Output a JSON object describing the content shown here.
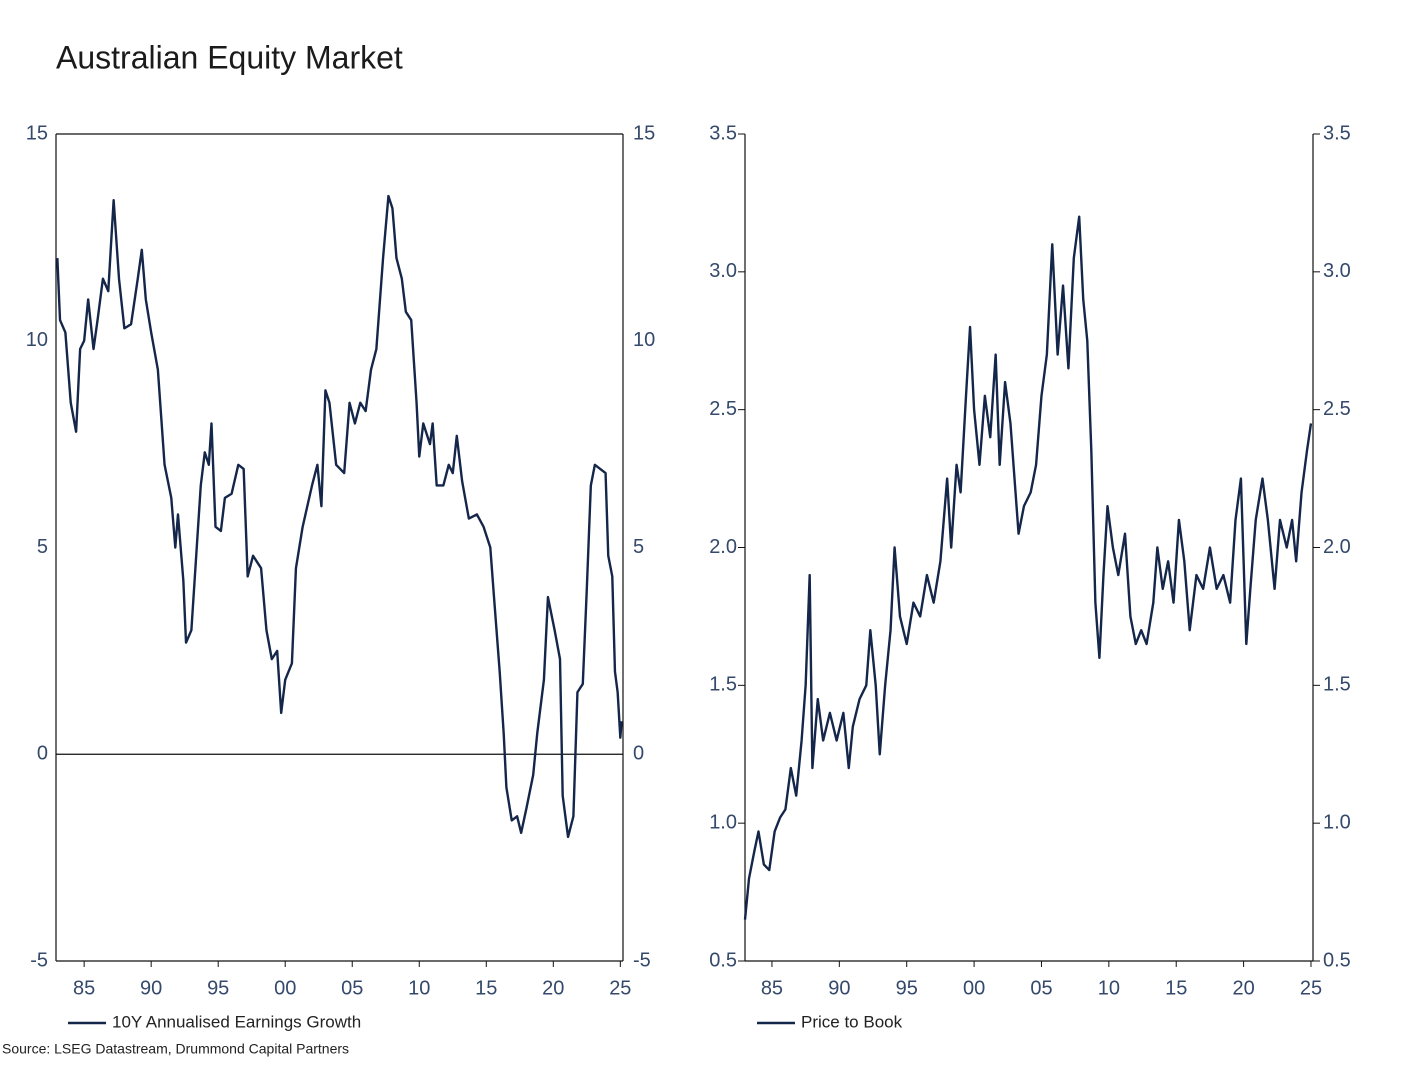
{
  "title": "Australian Equity Market",
  "source": "Source: LSEG Datastream, Drummond Capital Partners",
  "chart_data": [
    {
      "type": "line",
      "xlim": [
        1982.9,
        2025.2
      ],
      "xticks": [
        {
          "value": 1985,
          "label": "85"
        },
        {
          "value": 1990,
          "label": "90"
        },
        {
          "value": 1995,
          "label": "95"
        },
        {
          "value": 2000,
          "label": "00"
        },
        {
          "value": 2005,
          "label": "05"
        },
        {
          "value": 2010,
          "label": "10"
        },
        {
          "value": 2015,
          "label": "15"
        },
        {
          "value": 2020,
          "label": "20"
        },
        {
          "value": 2025,
          "label": "25"
        }
      ],
      "ylim": [
        -5,
        15
      ],
      "yticks": [
        -5,
        0,
        5,
        10,
        15
      ],
      "y2lim": [
        -5,
        15
      ],
      "y2ticks": [
        -5,
        0,
        5,
        10,
        15
      ],
      "x": [
        1983.0,
        1983.2,
        1983.6,
        1984.0,
        1984.4,
        1984.7,
        1985.0,
        1985.3,
        1985.7,
        1986.0,
        1986.4,
        1986.8,
        1987.2,
        1987.6,
        1988.0,
        1988.5,
        1989.0,
        1989.3,
        1989.6,
        1990.0,
        1990.5,
        1991.0,
        1991.5,
        1991.8,
        1992.0,
        1992.4,
        1992.6,
        1993.0,
        1993.3,
        1993.7,
        1994.0,
        1994.3,
        1994.5,
        1994.8,
        1995.2,
        1995.5,
        1996.0,
        1996.5,
        1996.9,
        1997.2,
        1997.6,
        1998.2,
        1998.6,
        1999.0,
        1999.4,
        1999.7,
        2000.0,
        2000.5,
        2000.8,
        2001.3,
        2002.0,
        2002.4,
        2002.7,
        2003.0,
        2003.3,
        2003.8,
        2004.4,
        2004.8,
        2005.2,
        2005.6,
        2006.0,
        2006.4,
        2006.8,
        2007.3,
        2007.7,
        2008.0,
        2008.3,
        2008.7,
        2009.0,
        2009.4,
        2009.8,
        2010.0,
        2010.3,
        2010.8,
        2011.0,
        2011.3,
        2011.8,
        2012.2,
        2012.5,
        2012.8,
        2013.2,
        2013.7,
        2014.3,
        2014.8,
        2015.3,
        2015.6,
        2016.0,
        2016.3,
        2016.5,
        2016.9,
        2017.3,
        2017.6,
        2018.0,
        2018.5,
        2018.8,
        2019.3,
        2019.6,
        2020.1,
        2020.5,
        2020.7,
        2021.1,
        2021.5,
        2021.8,
        2022.2,
        2022.5,
        2022.8,
        2023.1,
        2023.5,
        2023.9,
        2024.1,
        2024.4,
        2024.6,
        2024.8,
        2025.0,
        2025.1
      ],
      "series": [
        {
          "name": "10Y Annualised Earnings Growth",
          "color": "#14264a",
          "values": [
            12,
            10.5,
            10.2,
            8.5,
            7.8,
            9.8,
            10,
            11,
            9.8,
            10.5,
            11.5,
            11.2,
            13.4,
            11.5,
            10.3,
            10.4,
            11.5,
            12.2,
            11,
            10.2,
            9.3,
            7,
            6.2,
            5,
            5.8,
            4.2,
            2.7,
            3,
            4.5,
            6.5,
            7.3,
            7.0,
            8,
            5.5,
            5.4,
            6.2,
            6.3,
            7.0,
            6.9,
            4.3,
            4.8,
            4.5,
            3.0,
            2.3,
            2.5,
            1.0,
            1.8,
            2.2,
            4.5,
            5.5,
            6.5,
            7.0,
            6,
            8.8,
            8.5,
            7.0,
            6.8,
            8.5,
            8,
            8.5,
            8.3,
            9.3,
            9.8,
            12,
            13.5,
            13.2,
            12,
            11.5,
            10.7,
            10.5,
            8.5,
            7.2,
            8,
            7.5,
            8,
            6.5,
            6.5,
            7.0,
            6.8,
            7.7,
            6.6,
            5.7,
            5.8,
            5.5,
            5.0,
            3.7,
            2.0,
            0.5,
            -0.8,
            -1.6,
            -1.5,
            -1.9,
            -1.3,
            -0.5,
            0.5,
            1.8,
            3.8,
            3,
            2.3,
            -1.0,
            -2.0,
            -1.5,
            1.5,
            1.7,
            4,
            6.5,
            7.0,
            6.9,
            6.8,
            4.8,
            4.3,
            2,
            1.5,
            0.4,
            0.8
          ]
        }
      ]
    },
    {
      "type": "line",
      "xlim": [
        1983.0,
        2025.15
      ],
      "xticks": [
        {
          "value": 1985,
          "label": "85"
        },
        {
          "value": 1990,
          "label": "90"
        },
        {
          "value": 1995,
          "label": "95"
        },
        {
          "value": 2000,
          "label": "00"
        },
        {
          "value": 2005,
          "label": "05"
        },
        {
          "value": 2010,
          "label": "10"
        },
        {
          "value": 2015,
          "label": "15"
        },
        {
          "value": 2020,
          "label": "20"
        },
        {
          "value": 2025,
          "label": "25"
        }
      ],
      "ylim": [
        0.5,
        3.5
      ],
      "yticks": [
        0.5,
        {
          "value": 1,
          "label": "1.0"
        },
        1.5,
        {
          "value": 2,
          "label": "2.0"
        },
        2.5,
        {
          "value": 3,
          "label": "3.0"
        },
        3.5
      ],
      "y2lim": [
        0.5,
        3.5
      ],
      "y2ticks": [
        0.5,
        {
          "value": 1,
          "label": "1.0"
        },
        1.5,
        {
          "value": 2,
          "label": "2.0"
        },
        2.5,
        {
          "value": 3,
          "label": "3.0"
        },
        3.5
      ],
      "x": [
        1983.0,
        1983.3,
        1983.7,
        1984.0,
        1984.4,
        1984.8,
        1985.2,
        1985.6,
        1986.0,
        1986.4,
        1986.8,
        1987.2,
        1987.5,
        1987.8,
        1988.0,
        1988.4,
        1988.8,
        1989.3,
        1989.8,
        1990.3,
        1990.7,
        1991.0,
        1991.5,
        1992.0,
        1992.3,
        1992.7,
        1993.0,
        1993.4,
        1993.8,
        1994.1,
        1994.5,
        1995.0,
        1995.5,
        1996.0,
        1996.5,
        1997.0,
        1997.5,
        1998.0,
        1998.3,
        1998.7,
        1999.0,
        1999.4,
        1999.7,
        2000.0,
        2000.4,
        2000.8,
        2001.2,
        2001.6,
        2001.9,
        2002.3,
        2002.7,
        2003.0,
        2003.3,
        2003.7,
        2004.2,
        2004.6,
        2005.0,
        2005.4,
        2005.8,
        2006.2,
        2006.6,
        2007.0,
        2007.4,
        2007.8,
        2008.1,
        2008.4,
        2008.7,
        2009.0,
        2009.3,
        2009.6,
        2009.9,
        2010.3,
        2010.7,
        2011.2,
        2011.6,
        2012.0,
        2012.4,
        2012.8,
        2013.3,
        2013.6,
        2014.0,
        2014.4,
        2014.8,
        2015.2,
        2015.6,
        2016.0,
        2016.5,
        2017.0,
        2017.5,
        2018.0,
        2018.5,
        2019.0,
        2019.4,
        2019.8,
        2020.2,
        2020.5,
        2020.9,
        2021.4,
        2021.8,
        2022.3,
        2022.7,
        2023.2,
        2023.6,
        2023.9,
        2024.3,
        2024.7,
        2025.0
      ],
      "series": [
        {
          "name": "Price to Book",
          "color": "#14264a",
          "values": [
            0.65,
            0.8,
            0.9,
            0.97,
            0.85,
            0.83,
            0.97,
            1.02,
            1.05,
            1.2,
            1.1,
            1.3,
            1.5,
            1.9,
            1.2,
            1.45,
            1.3,
            1.4,
            1.3,
            1.4,
            1.2,
            1.35,
            1.45,
            1.5,
            1.7,
            1.5,
            1.25,
            1.5,
            1.7,
            2.0,
            1.75,
            1.65,
            1.8,
            1.75,
            1.9,
            1.8,
            1.95,
            2.25,
            2.0,
            2.3,
            2.2,
            2.55,
            2.8,
            2.5,
            2.3,
            2.55,
            2.4,
            2.7,
            2.3,
            2.6,
            2.45,
            2.25,
            2.05,
            2.15,
            2.2,
            2.3,
            2.55,
            2.7,
            3.1,
            2.7,
            2.95,
            2.65,
            3.05,
            3.2,
            2.9,
            2.75,
            2.35,
            1.8,
            1.6,
            1.9,
            2.15,
            2.0,
            1.9,
            2.05,
            1.75,
            1.65,
            1.7,
            1.65,
            1.8,
            2.0,
            1.85,
            1.95,
            1.8,
            2.1,
            1.95,
            1.7,
            1.9,
            1.85,
            2.0,
            1.85,
            1.9,
            1.8,
            2.1,
            2.25,
            1.65,
            1.85,
            2.1,
            2.25,
            2.1,
            1.85,
            2.1,
            2.0,
            2.1,
            1.95,
            2.2,
            2.35,
            2.45
          ]
        }
      ]
    }
  ]
}
